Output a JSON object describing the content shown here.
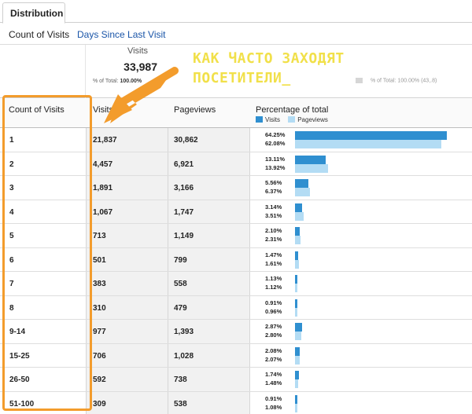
{
  "tab": {
    "label": "Distribution"
  },
  "subnav": {
    "active": "Count of Visits",
    "link": "Days Since Last Visit"
  },
  "summary": {
    "label": "Visits",
    "value": "33,987",
    "subtext_prefix": "% of Total: ",
    "subtext_value": "100.00%",
    "right_text": "% of Total: 100.00% (43,.8)"
  },
  "table": {
    "headers": {
      "col1": "Count of Visits",
      "col2": "Visits",
      "col3": "Pageviews",
      "col4": "Percentage of total"
    },
    "legend": {
      "visits": "Visits",
      "pageviews": "Pageviews"
    },
    "rows": [
      {
        "count": "1",
        "visits": "21,837",
        "pageviews": "30,862",
        "pct_visits": "64.25%",
        "pct_pageviews": "62.08%"
      },
      {
        "count": "2",
        "visits": "4,457",
        "pageviews": "6,921",
        "pct_visits": "13.11%",
        "pct_pageviews": "13.92%"
      },
      {
        "count": "3",
        "visits": "1,891",
        "pageviews": "3,166",
        "pct_visits": "5.56%",
        "pct_pageviews": "6.37%"
      },
      {
        "count": "4",
        "visits": "1,067",
        "pageviews": "1,747",
        "pct_visits": "3.14%",
        "pct_pageviews": "3.51%"
      },
      {
        "count": "5",
        "visits": "713",
        "pageviews": "1,149",
        "pct_visits": "2.10%",
        "pct_pageviews": "2.31%"
      },
      {
        "count": "6",
        "visits": "501",
        "pageviews": "799",
        "pct_visits": "1.47%",
        "pct_pageviews": "1.61%"
      },
      {
        "count": "7",
        "visits": "383",
        "pageviews": "558",
        "pct_visits": "1.13%",
        "pct_pageviews": "1.12%"
      },
      {
        "count": "8",
        "visits": "310",
        "pageviews": "479",
        "pct_visits": "0.91%",
        "pct_pageviews": "0.96%"
      },
      {
        "count": "9-14",
        "visits": "977",
        "pageviews": "1,393",
        "pct_visits": "2.87%",
        "pct_pageviews": "2.80%"
      },
      {
        "count": "15-25",
        "visits": "706",
        "pageviews": "1,028",
        "pct_visits": "2.08%",
        "pct_pageviews": "2.07%"
      },
      {
        "count": "26-50",
        "visits": "592",
        "pageviews": "738",
        "pct_visits": "1.74%",
        "pct_pageviews": "1.48%"
      },
      {
        "count": "51-100",
        "visits": "309",
        "pageviews": "538",
        "pct_visits": "0.91%",
        "pct_pageviews": "1.08%"
      }
    ]
  },
  "annotation": {
    "line1": "КАК ЧАСТО ЗАХОДЯТ",
    "line2": "ПОСЕТИТЕЛИ_"
  },
  "colors": {
    "visits_bar": "#2f8fd0",
    "pageviews_bar": "#b3dcf4",
    "highlight": "#f39c2c",
    "annotation_text": "#f1e04a",
    "link": "#1a55a8"
  }
}
